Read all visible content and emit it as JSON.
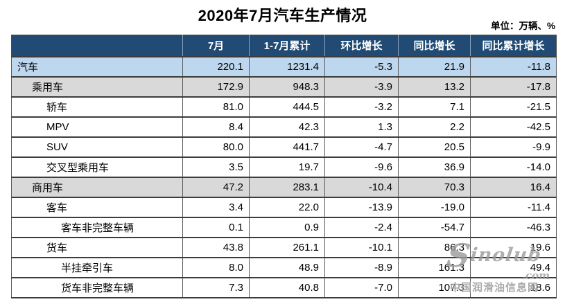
{
  "title": "2020年7月汽车生产情况",
  "unit_label": "单位：万辆、%",
  "colors": {
    "header_bg": "#214B74",
    "header_text": "#FFFFFF",
    "row_highlight_blue": "#BDD7EE",
    "row_highlight_gray": "#D9D9D9",
    "border": "#3C3C3C"
  },
  "table": {
    "columns": [
      "",
      "7月",
      "1-7月累计",
      "环比增长",
      "同比增长",
      "同比累计增长"
    ],
    "rows": [
      {
        "category": "汽车",
        "indent": 0,
        "highlight": "blue",
        "values": [
          "220.1",
          "1231.4",
          "-5.3",
          "21.9",
          "-11.8"
        ]
      },
      {
        "category": "乘用车",
        "indent": 1,
        "highlight": "gray",
        "values": [
          "172.9",
          "948.3",
          "-3.9",
          "13.2",
          "-17.8"
        ]
      },
      {
        "category": "轿车",
        "indent": 2,
        "highlight": "none",
        "values": [
          "81.0",
          "444.5",
          "-3.2",
          "7.1",
          "-21.5"
        ]
      },
      {
        "category": "MPV",
        "indent": 2,
        "highlight": "none",
        "values": [
          "8.4",
          "42.3",
          "1.3",
          "2.2",
          "-42.5"
        ]
      },
      {
        "category": "SUV",
        "indent": 2,
        "highlight": "none",
        "values": [
          "80.0",
          "441.7",
          "-4.7",
          "20.5",
          "-9.9"
        ]
      },
      {
        "category": "交叉型乘用车",
        "indent": 2,
        "highlight": "none",
        "values": [
          "3.5",
          "19.7",
          "-9.6",
          "36.9",
          "-14.0"
        ]
      },
      {
        "category": "商用车",
        "indent": 1,
        "highlight": "gray",
        "values": [
          "47.2",
          "283.1",
          "-10.4",
          "70.3",
          "16.4"
        ]
      },
      {
        "category": "客车",
        "indent": 2,
        "highlight": "none",
        "values": [
          "3.4",
          "22.0",
          "-13.9",
          "-19.0",
          "-11.4"
        ]
      },
      {
        "category": "客车非完整车辆",
        "indent": 3,
        "highlight": "none",
        "values": [
          "0.1",
          "0.9",
          "-2.4",
          "-54.7",
          "-46.3"
        ]
      },
      {
        "category": "货车",
        "indent": 2,
        "highlight": "none",
        "values": [
          "43.8",
          "261.1",
          "-10.1",
          "86.3",
          "19.6"
        ]
      },
      {
        "category": "半挂牵引车",
        "indent": 3,
        "highlight": "none",
        "values": [
          "8.0",
          "48.9",
          "-8.9",
          "161.3",
          "49.4"
        ]
      },
      {
        "category": "货车非完整车辆",
        "indent": 3,
        "highlight": "none",
        "values": [
          "7.3",
          "40.8",
          "-7.0",
          "107.3",
          "18.6"
        ]
      }
    ]
  },
  "watermark": {
    "logo_s": "S",
    "logo_rest": "inolub",
    "domain": ".com",
    "site_name": "中国润滑油信息网"
  },
  "chart_data": {
    "type": "table",
    "title": "2020年7月汽车生产情况",
    "unit": "万辆、%",
    "columns": [
      "7月",
      "1-7月累计",
      "环比增长",
      "同比增长",
      "同比累计增长"
    ],
    "rows": [
      {
        "category": "汽车",
        "jul": 220.1,
        "jan_jul_cum": 1231.4,
        "mom_growth": -5.3,
        "yoy_growth": 21.9,
        "yoy_cum_growth": -11.8
      },
      {
        "category": "乘用车",
        "jul": 172.9,
        "jan_jul_cum": 948.3,
        "mom_growth": -3.9,
        "yoy_growth": 13.2,
        "yoy_cum_growth": -17.8
      },
      {
        "category": "轿车",
        "jul": 81.0,
        "jan_jul_cum": 444.5,
        "mom_growth": -3.2,
        "yoy_growth": 7.1,
        "yoy_cum_growth": -21.5
      },
      {
        "category": "MPV",
        "jul": 8.4,
        "jan_jul_cum": 42.3,
        "mom_growth": 1.3,
        "yoy_growth": 2.2,
        "yoy_cum_growth": -42.5
      },
      {
        "category": "SUV",
        "jul": 80.0,
        "jan_jul_cum": 441.7,
        "mom_growth": -4.7,
        "yoy_growth": 20.5,
        "yoy_cum_growth": -9.9
      },
      {
        "category": "交叉型乘用车",
        "jul": 3.5,
        "jan_jul_cum": 19.7,
        "mom_growth": -9.6,
        "yoy_growth": 36.9,
        "yoy_cum_growth": -14.0
      },
      {
        "category": "商用车",
        "jul": 47.2,
        "jan_jul_cum": 283.1,
        "mom_growth": -10.4,
        "yoy_growth": 70.3,
        "yoy_cum_growth": 16.4
      },
      {
        "category": "客车",
        "jul": 3.4,
        "jan_jul_cum": 22.0,
        "mom_growth": -13.9,
        "yoy_growth": -19.0,
        "yoy_cum_growth": -11.4
      },
      {
        "category": "客车非完整车辆",
        "jul": 0.1,
        "jan_jul_cum": 0.9,
        "mom_growth": -2.4,
        "yoy_growth": -54.7,
        "yoy_cum_growth": -46.3
      },
      {
        "category": "货车",
        "jul": 43.8,
        "jan_jul_cum": 261.1,
        "mom_growth": -10.1,
        "yoy_growth": 86.3,
        "yoy_cum_growth": 19.6
      },
      {
        "category": "半挂牵引车",
        "jul": 8.0,
        "jan_jul_cum": 48.9,
        "mom_growth": -8.9,
        "yoy_growth": 161.3,
        "yoy_cum_growth": 49.4
      },
      {
        "category": "货车非完整车辆",
        "jul": 7.3,
        "jan_jul_cum": 40.8,
        "mom_growth": -7.0,
        "yoy_growth": 107.3,
        "yoy_cum_growth": 18.6
      }
    ]
  }
}
